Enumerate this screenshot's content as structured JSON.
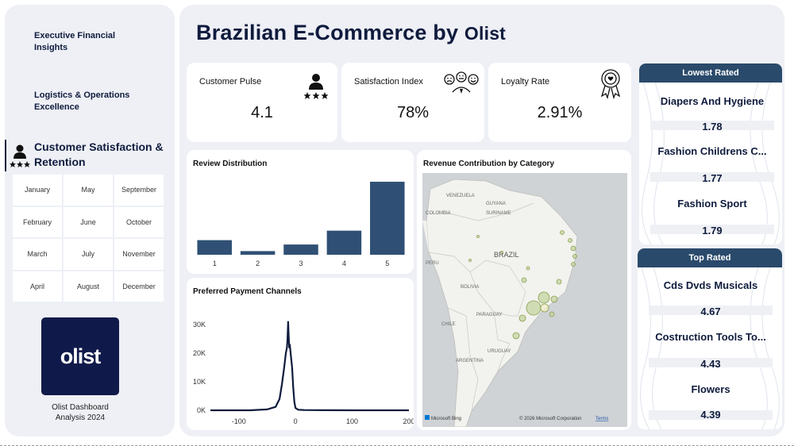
{
  "sidebar": {
    "nav": [
      {
        "label": "Executive Financial Insights"
      },
      {
        "label": "Logistics & Operations Excellence"
      },
      {
        "label": "Customer Satisfaction & Retention"
      }
    ],
    "months": [
      "January",
      "May",
      "September",
      "February",
      "June",
      "October",
      "March",
      "July",
      "November",
      "April",
      "August",
      "December"
    ],
    "logo_text": "olist",
    "logo_caption_line1": "Olist Dashboard",
    "logo_caption_line2": "Analysis 2024"
  },
  "header": {
    "title_main": "Brazilian E-Commerce by",
    "title_brand": "Olist"
  },
  "kpis": [
    {
      "label": "Customer Pulse",
      "value": "4.1",
      "icon": "customer-rating-icon"
    },
    {
      "label": "Satisfaction Index",
      "value": "78%",
      "icon": "satisfaction-faces-icon"
    },
    {
      "label": "Loyalty Rate",
      "value": "2.91%",
      "icon": "award-ribbon-icon"
    }
  ],
  "review_chart": {
    "title": "Review Distribution",
    "chart_data": {
      "type": "bar",
      "categories": [
        "1",
        "2",
        "3",
        "4",
        "5"
      ],
      "values": [
        0.2,
        0.05,
        0.14,
        0.33,
        1.0
      ],
      "color": "#2f5074"
    }
  },
  "payment_chart": {
    "title": "Preferred Payment Channels",
    "chart_data": {
      "type": "line",
      "x_ticks": [
        "-100",
        "0",
        "100",
        "200"
      ],
      "y_ticks": [
        "0K",
        "10K",
        "20K",
        "30K"
      ],
      "xlim": [
        -150,
        200
      ],
      "ylim": [
        0,
        32000
      ],
      "x": [
        -150,
        -80,
        -50,
        -35,
        -28,
        -24,
        -20,
        -17,
        -15,
        -14,
        -13,
        -12,
        -11,
        -10,
        -9,
        -8,
        -6,
        -4,
        -2,
        0,
        5,
        15,
        50,
        100,
        150,
        200
      ],
      "y": [
        0,
        0,
        300,
        1200,
        4000,
        9000,
        15000,
        20000,
        22000,
        25000,
        31000,
        26000,
        22000,
        23000,
        21000,
        19000,
        15000,
        8000,
        3000,
        800,
        200,
        80,
        30,
        10,
        5,
        0
      ],
      "color": "#0f1b3d"
    }
  },
  "map_card": {
    "title": "Revenue Contribution by Category",
    "labels": [
      "VENEZUELA",
      "GUYANA",
      "SURINAME",
      "COLOMBIA",
      "BRAZIL",
      "PERU",
      "BOLIVIA",
      "CHILE",
      "PARAGUAY",
      "ARGENTINA",
      "URUGUAY"
    ],
    "attribution": "© 2026 Microsoft Corporation",
    "terms": "Terms",
    "bing": "Microsoft Bing"
  },
  "lowest_rated": {
    "title": "Lowest Rated",
    "items": [
      {
        "name": "Diapers And Hygiene",
        "value": "1.78"
      },
      {
        "name": "Fashion Childrens C...",
        "value": "1.77"
      },
      {
        "name": "Fashion Sport",
        "value": "1.79"
      }
    ]
  },
  "top_rated": {
    "title": "Top Rated",
    "items": [
      {
        "name": "Cds Dvds Musicals",
        "value": "4.67"
      },
      {
        "name": "Costruction Tools To...",
        "value": "4.43"
      },
      {
        "name": "Flowers",
        "value": "4.39"
      }
    ]
  }
}
